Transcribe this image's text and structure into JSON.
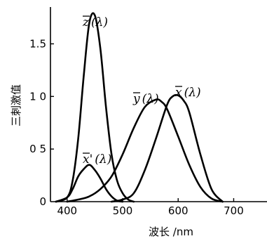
{
  "chart_data": {
    "type": "line",
    "title": "",
    "xlabel": "波长 /nm",
    "ylabel": "三刺激值",
    "xlim": [
      370,
      760
    ],
    "ylim": [
      0,
      1.85
    ],
    "x_ticks": [
      400,
      500,
      600,
      700
    ],
    "x_tick_labels": [
      "400",
      "500",
      "600",
      "700"
    ],
    "y_ticks": [
      0,
      0.5,
      1.0,
      1.5
    ],
    "y_tick_labels": [
      "0",
      "0 5",
      "1 0",
      "1.5"
    ],
    "grid": false,
    "legend": "none",
    "series": [
      {
        "name": "z(λ)",
        "x": [
          380,
          400,
          410,
          420,
          430,
          440,
          450,
          460,
          470,
          480,
          490,
          500,
          510,
          520
        ],
        "y": [
          0.0,
          0.04,
          0.2,
          0.6,
          1.2,
          1.7,
          1.77,
          1.45,
          0.9,
          0.45,
          0.2,
          0.08,
          0.02,
          0.0
        ]
      },
      {
        "name": "x'(λ)",
        "x": [
          380,
          400,
          410,
          420,
          430,
          440,
          450,
          460,
          470,
          480,
          490,
          500
        ],
        "y": [
          0.0,
          0.04,
          0.12,
          0.24,
          0.31,
          0.35,
          0.3,
          0.22,
          0.12,
          0.05,
          0.01,
          0.0
        ]
      },
      {
        "name": "y(λ)",
        "x": [
          400,
          420,
          440,
          460,
          480,
          500,
          520,
          540,
          560,
          570,
          580,
          600,
          620,
          640,
          660,
          680
        ],
        "y": [
          0.0,
          0.02,
          0.05,
          0.12,
          0.24,
          0.45,
          0.7,
          0.9,
          0.97,
          0.95,
          0.88,
          0.62,
          0.35,
          0.14,
          0.03,
          0.0
        ]
      },
      {
        "name": "x(λ)",
        "x": [
          480,
          500,
          520,
          540,
          560,
          580,
          590,
          600,
          610,
          620,
          640,
          660,
          680
        ],
        "y": [
          0.0,
          0.02,
          0.08,
          0.3,
          0.6,
          0.92,
          1.0,
          1.01,
          0.96,
          0.85,
          0.45,
          0.12,
          0.0
        ]
      }
    ],
    "annotations": [
      {
        "base": "z",
        "overbar": true,
        "prime": false,
        "suffix": "(λ)"
      },
      {
        "base": "x",
        "overbar": true,
        "prime": true,
        "suffix": "(λ)"
      },
      {
        "base": "y",
        "overbar": true,
        "prime": false,
        "suffix": "(λ)"
      },
      {
        "base": "x",
        "overbar": true,
        "prime": false,
        "suffix": "(λ)"
      }
    ]
  }
}
